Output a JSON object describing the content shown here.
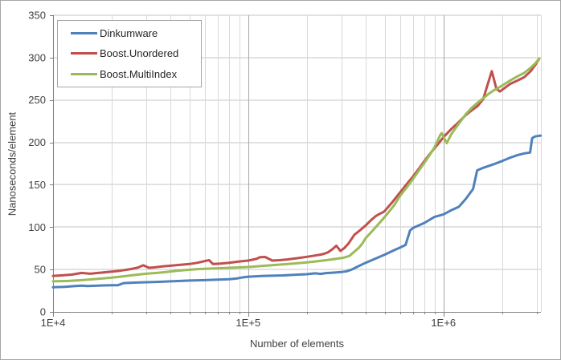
{
  "chart_data": {
    "type": "line",
    "title": "",
    "xlabel": "Number of elements",
    "ylabel": "Nanoseconds/element",
    "x_scale": "log",
    "x_range": [
      10000,
      3160000
    ],
    "x_ticks": [
      {
        "value": 10000,
        "label": "1E+4"
      },
      {
        "value": 100000,
        "label": "1E+5"
      },
      {
        "value": 1000000,
        "label": "1E+6"
      }
    ],
    "ylim": [
      0,
      350
    ],
    "y_ticks": [
      0,
      50,
      100,
      150,
      200,
      250,
      300,
      350
    ],
    "grid": true,
    "legend_position": "top-left",
    "colors": {
      "axis": "#808080",
      "grid_minor": "#d9d9d9",
      "grid_major": "#a6a6a6",
      "grid_horizontal": "#c6c6c6",
      "tick_text": "#3f3f3f"
    },
    "series": [
      {
        "name": "Dinkumware",
        "color": "#4F81BD",
        "points": [
          [
            10000,
            29
          ],
          [
            11500,
            29.5
          ],
          [
            13000,
            30.5
          ],
          [
            14000,
            31
          ],
          [
            15000,
            30.5
          ],
          [
            17000,
            31
          ],
          [
            20000,
            31.5
          ],
          [
            21500,
            31.5
          ],
          [
            23000,
            34
          ],
          [
            26000,
            34.5
          ],
          [
            30000,
            35
          ],
          [
            35000,
            35.5
          ],
          [
            40000,
            36
          ],
          [
            45000,
            36.5
          ],
          [
            50000,
            37
          ],
          [
            60000,
            37.5
          ],
          [
            70000,
            38
          ],
          [
            80000,
            38.5
          ],
          [
            88000,
            39.5
          ],
          [
            95000,
            41
          ],
          [
            100000,
            41.5
          ],
          [
            120000,
            42.5
          ],
          [
            150000,
            43
          ],
          [
            180000,
            44
          ],
          [
            200000,
            44.5
          ],
          [
            220000,
            45.5
          ],
          [
            235000,
            44.8
          ],
          [
            250000,
            45.8
          ],
          [
            270000,
            46.3
          ],
          [
            300000,
            47
          ],
          [
            320000,
            48
          ],
          [
            340000,
            50
          ],
          [
            360000,
            53
          ],
          [
            400000,
            58
          ],
          [
            450000,
            63
          ],
          [
            500000,
            67.5
          ],
          [
            550000,
            72
          ],
          [
            600000,
            76
          ],
          [
            640000,
            79
          ],
          [
            675000,
            96
          ],
          [
            700000,
            99
          ],
          [
            800000,
            105
          ],
          [
            900000,
            112
          ],
          [
            1000000,
            115
          ],
          [
            1100000,
            120
          ],
          [
            1200000,
            124
          ],
          [
            1300000,
            133
          ],
          [
            1420000,
            145
          ],
          [
            1490000,
            167
          ],
          [
            1600000,
            170
          ],
          [
            1800000,
            174
          ],
          [
            2000000,
            178
          ],
          [
            2200000,
            182
          ],
          [
            2400000,
            185
          ],
          [
            2600000,
            187
          ],
          [
            2780000,
            188
          ],
          [
            2850000,
            205
          ],
          [
            2950000,
            207
          ],
          [
            3150000,
            208
          ]
        ]
      },
      {
        "name": "Boost.Unordered",
        "color": "#C0504D",
        "points": [
          [
            10000,
            42.5
          ],
          [
            11000,
            43
          ],
          [
            12500,
            44
          ],
          [
            14000,
            46
          ],
          [
            15500,
            45
          ],
          [
            17000,
            46
          ],
          [
            20000,
            47.5
          ],
          [
            22000,
            48.5
          ],
          [
            25000,
            50.5
          ],
          [
            27000,
            52
          ],
          [
            29000,
            55
          ],
          [
            31000,
            52
          ],
          [
            33000,
            52.5
          ],
          [
            36000,
            53.5
          ],
          [
            40000,
            54.5
          ],
          [
            45000,
            55.5
          ],
          [
            50000,
            56.5
          ],
          [
            55000,
            58
          ],
          [
            60000,
            60
          ],
          [
            63000,
            61
          ],
          [
            66000,
            56.5
          ],
          [
            72000,
            57
          ],
          [
            80000,
            58
          ],
          [
            90000,
            59.5
          ],
          [
            100000,
            60.5
          ],
          [
            110000,
            62.5
          ],
          [
            115000,
            64.5
          ],
          [
            122000,
            64.8
          ],
          [
            133000,
            60.5
          ],
          [
            145000,
            61
          ],
          [
            160000,
            62
          ],
          [
            180000,
            63.5
          ],
          [
            200000,
            65
          ],
          [
            220000,
            66.5
          ],
          [
            240000,
            68
          ],
          [
            255000,
            70
          ],
          [
            270000,
            74
          ],
          [
            283000,
            78
          ],
          [
            297000,
            72
          ],
          [
            310000,
            75
          ],
          [
            325000,
            80
          ],
          [
            350000,
            91
          ],
          [
            375000,
            96.5
          ],
          [
            400000,
            102
          ],
          [
            425000,
            108
          ],
          [
            450000,
            113
          ],
          [
            470000,
            115.5
          ],
          [
            490000,
            117.5
          ],
          [
            500000,
            119
          ],
          [
            550000,
            130
          ],
          [
            600000,
            141
          ],
          [
            650000,
            151
          ],
          [
            700000,
            160
          ],
          [
            750000,
            169
          ],
          [
            800000,
            178
          ],
          [
            850000,
            186
          ],
          [
            900000,
            193
          ],
          [
            950000,
            199.5
          ],
          [
            1000000,
            206
          ],
          [
            1100000,
            216
          ],
          [
            1200000,
            224
          ],
          [
            1300000,
            232
          ],
          [
            1400000,
            238
          ],
          [
            1500000,
            243
          ],
          [
            1600000,
            251
          ],
          [
            1700000,
            271
          ],
          [
            1770000,
            284
          ],
          [
            1870000,
            263
          ],
          [
            1950000,
            260
          ],
          [
            2000000,
            262
          ],
          [
            2200000,
            269
          ],
          [
            2400000,
            273
          ],
          [
            2600000,
            277
          ],
          [
            2800000,
            284
          ],
          [
            2950000,
            291
          ],
          [
            3100000,
            299
          ]
        ]
      },
      {
        "name": "Boost.MultiIndex",
        "color": "#9BBB59",
        "points": [
          [
            10000,
            36
          ],
          [
            12000,
            36.5
          ],
          [
            14000,
            37.5
          ],
          [
            16000,
            38.5
          ],
          [
            18000,
            39.5
          ],
          [
            20000,
            40.5
          ],
          [
            23000,
            42
          ],
          [
            26000,
            43.5
          ],
          [
            30000,
            45
          ],
          [
            34000,
            46
          ],
          [
            38000,
            47
          ],
          [
            43000,
            48.5
          ],
          [
            48000,
            49.5
          ],
          [
            55000,
            50.5
          ],
          [
            62000,
            51
          ],
          [
            70000,
            51.5
          ],
          [
            80000,
            52
          ],
          [
            90000,
            52.5
          ],
          [
            100000,
            53
          ],
          [
            115000,
            54
          ],
          [
            130000,
            55
          ],
          [
            150000,
            56
          ],
          [
            170000,
            57
          ],
          [
            200000,
            58.5
          ],
          [
            230000,
            60
          ],
          [
            260000,
            61.5
          ],
          [
            290000,
            63
          ],
          [
            310000,
            64
          ],
          [
            330000,
            66
          ],
          [
            350000,
            71
          ],
          [
            370000,
            76
          ],
          [
            385000,
            81
          ],
          [
            400000,
            87
          ],
          [
            430000,
            95
          ],
          [
            450000,
            100
          ],
          [
            475000,
            106
          ],
          [
            500000,
            112
          ],
          [
            530000,
            119
          ],
          [
            560000,
            126
          ],
          [
            600000,
            137
          ],
          [
            650000,
            147
          ],
          [
            700000,
            157
          ],
          [
            750000,
            167
          ],
          [
            800000,
            176
          ],
          [
            850000,
            185
          ],
          [
            900000,
            194
          ],
          [
            930000,
            201
          ],
          [
            960000,
            208
          ],
          [
            980000,
            211
          ],
          [
            1010000,
            205
          ],
          [
            1040000,
            199
          ],
          [
            1100000,
            210
          ],
          [
            1200000,
            222
          ],
          [
            1300000,
            233
          ],
          [
            1400000,
            241
          ],
          [
            1500000,
            247
          ],
          [
            1600000,
            252
          ],
          [
            1700000,
            257
          ],
          [
            1800000,
            261
          ],
          [
            1900000,
            264
          ],
          [
            2000000,
            267
          ],
          [
            2200000,
            273
          ],
          [
            2400000,
            278
          ],
          [
            2600000,
            282
          ],
          [
            2800000,
            288
          ],
          [
            2950000,
            293
          ],
          [
            3100000,
            299
          ]
        ]
      }
    ]
  }
}
